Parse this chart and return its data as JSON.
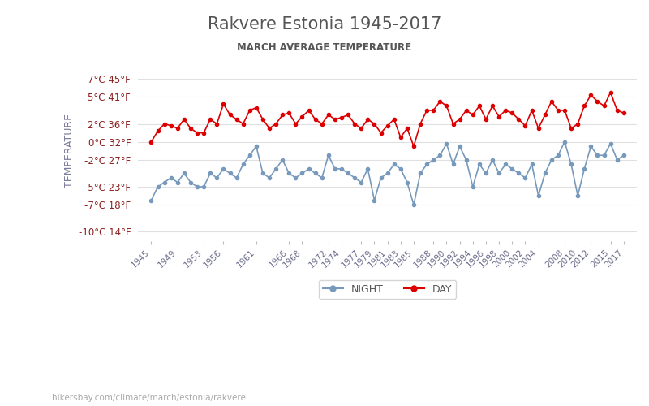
{
  "title": "Rakvere Estonia 1945-2017",
  "subtitle": "MARCH AVERAGE TEMPERATURE",
  "ylabel": "TEMPERATURE",
  "background_color": "#ffffff",
  "plot_bg_color": "#ffffff",
  "grid_color": "#e0e0e0",
  "title_color": "#555555",
  "subtitle_color": "#555555",
  "ylabel_color": "#7a7a9a",
  "tick_color": "#8b2020",
  "xtick_color": "#6a6a8a",
  "day_color": "#dd0000",
  "night_color": "#7799bb",
  "yticks_c": [
    7,
    5,
    2,
    0,
    -2,
    -5,
    -7,
    -10
  ],
  "yticks_f": [
    45,
    41,
    36,
    32,
    27,
    23,
    18,
    14
  ],
  "ylim": [
    -11,
    9
  ],
  "xlim": [
    1943,
    2019
  ],
  "legend_night": "NIGHT",
  "legend_day": "DAY",
  "website": "hikersbay.com/climate/march/estonia/rakvere",
  "xtick_years": [
    1945,
    1949,
    1953,
    1956,
    1961,
    1966,
    1968,
    1972,
    1974,
    1977,
    1979,
    1981,
    1983,
    1985,
    1988,
    1990,
    1992,
    1994,
    1996,
    1998,
    2000,
    2002,
    2004,
    2008,
    2010,
    2012,
    2015,
    2017
  ],
  "years_data": [
    1945,
    1946,
    1947,
    1948,
    1949,
    1950,
    1951,
    1952,
    1953,
    1954,
    1955,
    1956,
    1957,
    1958,
    1959,
    1960,
    1961,
    1962,
    1963,
    1964,
    1965,
    1966,
    1967,
    1968,
    1969,
    1970,
    1971,
    1972,
    1973,
    1974,
    1975,
    1976,
    1977,
    1978,
    1979,
    1980,
    1981,
    1982,
    1983,
    1984,
    1985,
    1986,
    1987,
    1988,
    1989,
    1990,
    1991,
    1992,
    1993,
    1994,
    1995,
    1996,
    1997,
    1998,
    1999,
    2000,
    2001,
    2002,
    2003,
    2004,
    2005,
    2006,
    2007,
    2008,
    2009,
    2010,
    2011,
    2012,
    2013,
    2014,
    2015,
    2016,
    2017
  ],
  "day_temps": [
    0.0,
    1.2,
    2.0,
    1.8,
    1.5,
    2.5,
    1.5,
    1.0,
    1.0,
    2.5,
    2.0,
    4.2,
    3.0,
    2.5,
    2.0,
    3.5,
    3.8,
    2.5,
    1.5,
    2.0,
    3.0,
    3.2,
    2.0,
    2.8,
    3.5,
    2.5,
    2.0,
    3.0,
    2.5,
    2.7,
    3.0,
    2.0,
    1.5,
    2.5,
    2.0,
    1.0,
    1.8,
    2.5,
    0.5,
    1.5,
    -0.5,
    2.0,
    3.5,
    3.5,
    4.5,
    4.0,
    2.0,
    2.5,
    3.5,
    3.0,
    4.0,
    2.5,
    4.0,
    2.8,
    3.5,
    3.2,
    2.5,
    1.8,
    3.5,
    1.5,
    3.0,
    4.5,
    3.5,
    3.5,
    1.5,
    2.0,
    4.0,
    5.2,
    4.5,
    4.0,
    5.5,
    3.5,
    3.2
  ],
  "night_temps": [
    -6.5,
    -5.0,
    -4.5,
    -4.0,
    -4.5,
    -3.5,
    -4.5,
    -5.0,
    -5.0,
    -3.5,
    -4.0,
    -3.0,
    -3.5,
    -4.0,
    -2.5,
    -1.5,
    -0.5,
    -3.5,
    -4.0,
    -3.0,
    -2.0,
    -3.5,
    -4.0,
    -3.5,
    -3.0,
    -3.5,
    -4.0,
    -1.5,
    -3.0,
    -3.0,
    -3.5,
    -4.0,
    -4.5,
    -3.0,
    -6.5,
    -4.0,
    -3.5,
    -2.5,
    -3.0,
    -4.5,
    -7.0,
    -3.5,
    -2.5,
    -2.0,
    -1.5,
    -0.2,
    -2.5,
    -0.5,
    -2.0,
    -5.0,
    -2.5,
    -3.5,
    -2.0,
    -3.5,
    -2.5,
    -3.0,
    -3.5,
    -4.0,
    -2.5,
    -6.0,
    -3.5,
    -2.0,
    -1.5,
    0.0,
    -2.5,
    -6.0,
    -3.0,
    -0.5,
    -1.5,
    -1.5,
    -0.2,
    -2.0,
    -1.5
  ]
}
